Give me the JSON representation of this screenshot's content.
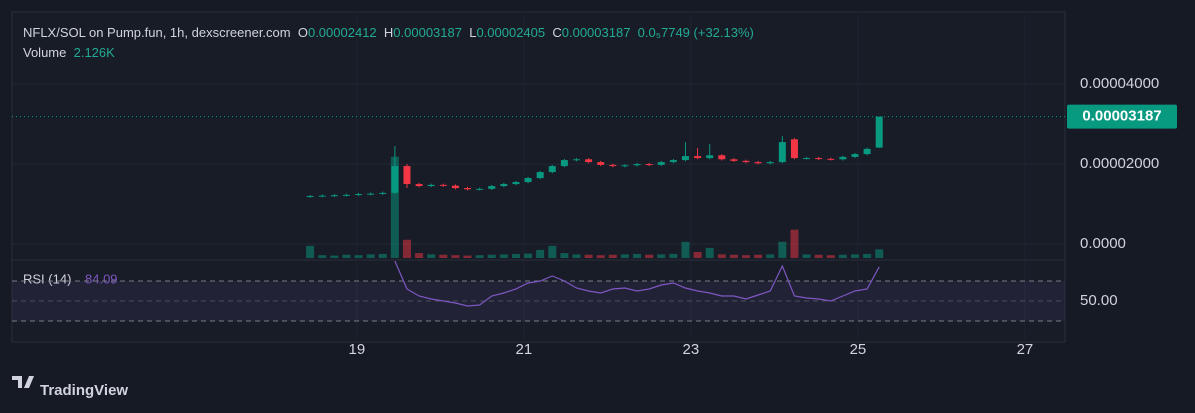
{
  "chart_data": {
    "type": "candlestick",
    "header": {
      "title": "NFLX/SOL on Pump.fun, 1h, dexscreener.com",
      "o_label": "O",
      "o": "0.00002412",
      "h_label": "H",
      "h": "0.00003187",
      "l_label": "L",
      "l": "0.00002405",
      "c_label": "C",
      "c": "0.00003187",
      "change": "0.0₅7749",
      "change_pct": "(+32.13%)",
      "volume_label": "Volume",
      "volume_value": "2.126K"
    },
    "x": [
      18.44,
      18.585,
      18.73,
      18.875,
      19.02,
      19.165,
      19.31,
      19.455,
      19.6,
      19.745,
      19.89,
      20.035,
      20.18,
      20.325,
      20.47,
      20.615,
      20.76,
      20.905,
      21.05,
      21.195,
      21.34,
      21.485,
      21.63,
      21.775,
      21.92,
      22.065,
      22.21,
      22.355,
      22.5,
      22.645,
      22.79,
      22.935,
      23.08,
      23.225,
      23.37,
      23.515,
      23.66,
      23.805,
      23.95,
      24.095,
      24.24,
      24.385,
      24.53,
      24.675,
      24.82,
      24.965,
      25.11,
      25.255
    ],
    "open": [
      1.19e-05,
      1.2e-05,
      1.21e-05,
      1.22e-05,
      1.23e-05,
      1.25e-05,
      1.26e-05,
      1.28e-05,
      1.95e-05,
      1.5e-05,
      1.45e-05,
      1.48e-05,
      1.46e-05,
      1.4e-05,
      1.37e-05,
      1.38e-05,
      1.45e-05,
      1.5e-05,
      1.55e-05,
      1.65e-05,
      1.8e-05,
      1.95e-05,
      2.1e-05,
      2.12e-05,
      2.05e-05,
      1.98e-05,
      1.95e-05,
      1.97e-05,
      2e-05,
      1.98e-05,
      2.05e-05,
      2.1e-05,
      2.2e-05,
      2.15e-05,
      2.22e-05,
      2.12e-05,
      2.08e-05,
      2.05e-05,
      2.02e-05,
      2.05e-05,
      2.62e-05,
      2.15e-05,
      2.15e-05,
      2.13e-05,
      2.12e-05,
      2.18e-05,
      2.25e-05,
      2.412e-05
    ],
    "high": [
      1.23e-05,
      1.24e-05,
      1.25e-05,
      1.26e-05,
      1.28e-05,
      1.29e-05,
      1.31e-05,
      2.45e-05,
      2e-05,
      1.53e-05,
      1.51e-05,
      1.51e-05,
      1.49e-05,
      1.43e-05,
      1.41e-05,
      1.48e-05,
      1.53e-05,
      1.58e-05,
      1.68e-05,
      1.83e-05,
      1.98e-05,
      2.13e-05,
      2.15e-05,
      2.15e-05,
      2.08e-05,
      2.01e-05,
      2e-05,
      2.03e-05,
      2.03e-05,
      2.08e-05,
      2.13e-05,
      2.55e-05,
      2.4e-05,
      2.5e-05,
      2.25e-05,
      2.15e-05,
      2.11e-05,
      2.08e-05,
      2.08e-05,
      2.7e-05,
      2.65e-05,
      2.18e-05,
      2.18e-05,
      2.16e-05,
      2.21e-05,
      2.28e-05,
      2.41e-05,
      3.187e-05
    ],
    "low": [
      1.16e-05,
      1.17e-05,
      1.18e-05,
      1.19e-05,
      1.2e-05,
      1.22e-05,
      1.23e-05,
      1.25e-05,
      1.4e-05,
      1.42e-05,
      1.42e-05,
      1.43e-05,
      1.37e-05,
      1.34e-05,
      1.34e-05,
      1.35e-05,
      1.42e-05,
      1.47e-05,
      1.52e-05,
      1.62e-05,
      1.77e-05,
      1.92e-05,
      2.07e-05,
      2.02e-05,
      1.95e-05,
      1.92e-05,
      1.92e-05,
      1.94e-05,
      1.95e-05,
      1.95e-05,
      2.02e-05,
      2.07e-05,
      2.12e-05,
      2.12e-05,
      2.09e-05,
      2.05e-05,
      2.02e-05,
      1.99e-05,
      1.99e-05,
      2.02e-05,
      2.12e-05,
      2.12e-05,
      2.1e-05,
      2.09e-05,
      2.09e-05,
      2.15e-05,
      2.22e-05,
      2.405e-05
    ],
    "close": [
      1.2e-05,
      1.21e-05,
      1.22e-05,
      1.23e-05,
      1.25e-05,
      1.26e-05,
      1.28e-05,
      1.95e-05,
      1.5e-05,
      1.45e-05,
      1.48e-05,
      1.46e-05,
      1.4e-05,
      1.37e-05,
      1.38e-05,
      1.45e-05,
      1.5e-05,
      1.55e-05,
      1.65e-05,
      1.8e-05,
      1.95e-05,
      2.1e-05,
      2.12e-05,
      2.05e-05,
      1.98e-05,
      1.95e-05,
      1.97e-05,
      2e-05,
      1.98e-05,
      2.05e-05,
      2.1e-05,
      2.2e-05,
      2.15e-05,
      2.22e-05,
      2.12e-05,
      2.08e-05,
      2.05e-05,
      2.02e-05,
      2.05e-05,
      2.55e-05,
      2.15e-05,
      2.15e-05,
      2.13e-05,
      2.12e-05,
      2.18e-05,
      2.25e-05,
      2.38e-05,
      3.187e-05
    ],
    "volume": [
      3000,
      700,
      600,
      800,
      700,
      900,
      1000,
      25000,
      4500,
      1200,
      900,
      800,
      700,
      600,
      700,
      800,
      900,
      1000,
      1100,
      2000,
      3000,
      1200,
      900,
      800,
      700,
      800,
      900,
      1000,
      800,
      900,
      1000,
      4000,
      1500,
      2500,
      900,
      800,
      700,
      800,
      900,
      4000,
      7000,
      900,
      800,
      700,
      800,
      900,
      1000,
      2126
    ],
    "volume_ylim": [
      0,
      60000
    ],
    "rsi_label": "RSI (14)",
    "rsi": [
      null,
      null,
      null,
      null,
      null,
      null,
      null,
      90,
      62,
      55,
      52,
      50,
      48,
      45,
      46,
      55,
      58,
      62,
      68,
      70,
      75,
      70,
      63,
      60,
      58,
      62,
      63,
      60,
      62,
      66,
      68,
      63,
      60,
      58,
      55,
      55,
      52,
      56,
      60,
      85,
      55,
      53,
      52,
      50,
      55,
      60,
      62,
      84.09
    ],
    "rsi_value_label": "84.09",
    "rsi_ylim": [
      11,
      89
    ],
    "rsi_bands": [
      30,
      70
    ],
    "rsi_yticks": [
      {
        "value": 50,
        "label": "50.00"
      }
    ],
    "xlim": [
      14.87,
      27.48
    ],
    "xticks": [
      19,
      21,
      23,
      25,
      27
    ],
    "ylim": [
      -3.5e-06,
      5.73e-05
    ],
    "yticks": [
      {
        "value": 0,
        "label": "0.0000"
      },
      {
        "value": 2e-05,
        "label": "0.00002000"
      },
      {
        "value": 4e-05,
        "label": "0.00004000"
      }
    ],
    "last_price": {
      "value": 3.187e-05,
      "label": "0.00003187"
    },
    "up_color": "#089981",
    "down_color": "#f23645",
    "rsi_color": "#7e57c2",
    "grid": true,
    "brand": "TradingView"
  }
}
